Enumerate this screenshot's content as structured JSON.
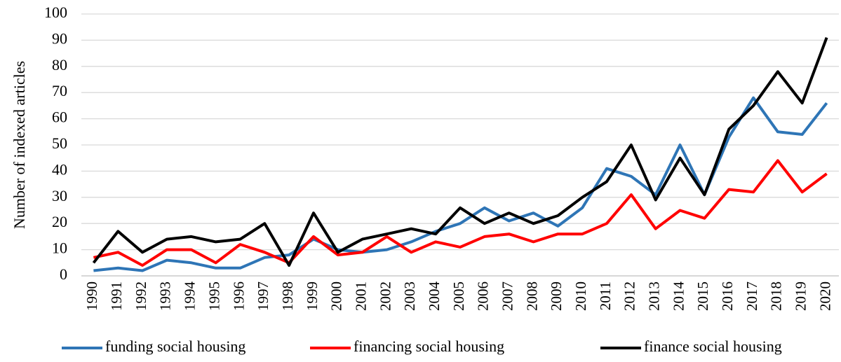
{
  "chart_data": {
    "type": "line",
    "y_label": "Number of indexed articles",
    "categories": [
      "1990",
      "1991",
      "1992",
      "1993",
      "1994",
      "1995",
      "1996",
      "1997",
      "1998",
      "1999",
      "2000",
      "2001",
      "2002",
      "2003",
      "2004",
      "2005",
      "2006",
      "2007",
      "2008",
      "2009",
      "2010",
      "2011",
      "2012",
      "2013",
      "2014",
      "2015",
      "2016",
      "2017",
      "2018",
      "2019",
      "2020"
    ],
    "series": [
      {
        "name": "funding social housing",
        "color": "#2e75b6",
        "values": [
          2,
          3,
          2,
          6,
          5,
          3,
          3,
          7,
          8,
          14,
          10,
          9,
          10,
          13,
          17,
          20,
          26,
          21,
          24,
          19,
          26,
          41,
          38,
          31,
          50,
          31,
          53,
          68,
          55,
          54,
          66
        ]
      },
      {
        "name": "financing social housing",
        "color": "#ff0000",
        "values": [
          7,
          9,
          4,
          10,
          10,
          5,
          12,
          9,
          5,
          15,
          8,
          9,
          15,
          9,
          13,
          11,
          15,
          16,
          13,
          16,
          16,
          20,
          31,
          18,
          25,
          22,
          33,
          32,
          44,
          32,
          39
        ]
      },
      {
        "name": "finance social housing",
        "color": "#000000",
        "values": [
          5,
          17,
          9,
          14,
          15,
          13,
          14,
          20,
          4,
          24,
          9,
          14,
          16,
          18,
          16,
          26,
          20,
          24,
          20,
          23,
          30,
          36,
          50,
          29,
          45,
          31,
          56,
          65,
          78,
          66,
          91
        ]
      }
    ],
    "ylim": [
      0,
      100
    ],
    "yticks": [
      0,
      10,
      20,
      30,
      40,
      50,
      60,
      70,
      80,
      90,
      100
    ],
    "grid": true,
    "legend": "bottom"
  }
}
